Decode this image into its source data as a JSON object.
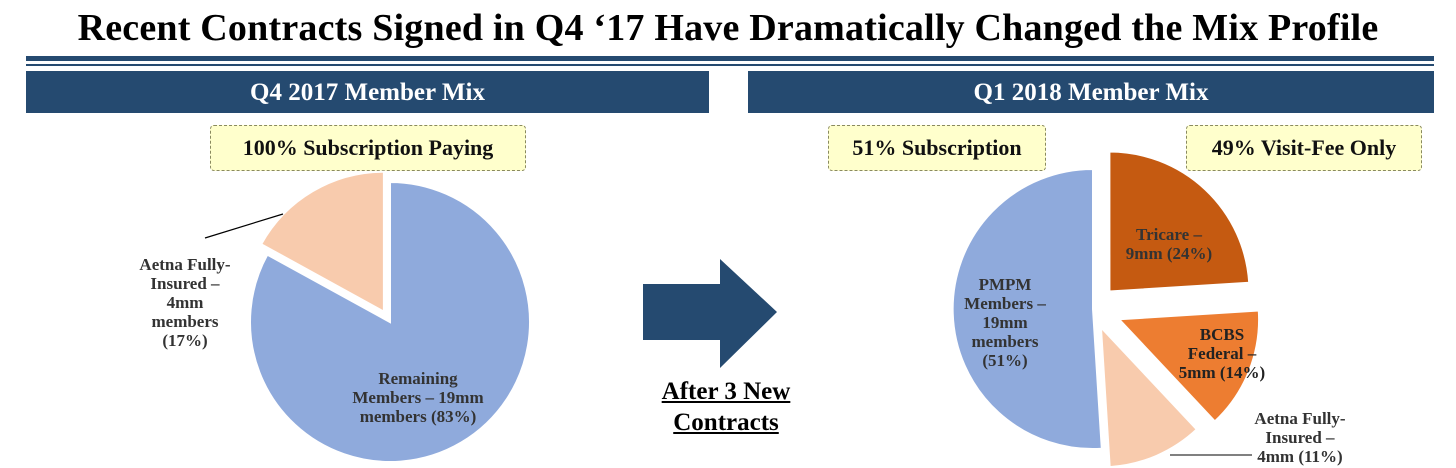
{
  "title": "Recent Contracts Signed in Q4 ‘17 Have Dramatically Changed the Mix Profile",
  "panels": {
    "left": {
      "header": "Q4 2017 Member Mix",
      "callout": "100% Subscription Paying"
    },
    "right": {
      "header": "Q1 2018 Member Mix",
      "callout_left": "51% Subscription",
      "callout_right": "49% Visit-Fee Only"
    }
  },
  "arrow_label_lines": [
    "After 3 New",
    "Contracts"
  ],
  "colors": {
    "header_bg": "#254a70",
    "pmpm": "#8faadc",
    "aetna": "#f8cbad",
    "tricare": "#c55a11",
    "bcbs": "#ed7d31",
    "callout_bg": "#ffffcc",
    "arrow": "#254a70"
  },
  "chart_data": [
    {
      "type": "pie",
      "title": "Q4 2017 Member Mix",
      "slices": [
        {
          "name": "Remaining Members – 19mm members",
          "value": 83,
          "label_lines": [
            "Remaining",
            "Members – 19mm",
            "members (83%)"
          ]
        },
        {
          "name": "Aetna Fully-Insured – 4mm members",
          "value": 17,
          "label_lines": [
            "Aetna Fully-",
            "Insured –",
            "4mm",
            "members",
            "(17%)"
          ]
        }
      ]
    },
    {
      "type": "pie",
      "title": "Q1 2018 Member Mix",
      "slices": [
        {
          "name": "PMPM Members – 19mm members",
          "value": 51,
          "label_lines": [
            "PMPM",
            "Members –",
            "19mm",
            "members",
            "(51%)"
          ]
        },
        {
          "name": "Tricare – 9mm",
          "value": 24,
          "label_lines": [
            "Tricare –",
            "9mm (24%)"
          ]
        },
        {
          "name": "BCBS Federal – 5mm",
          "value": 14,
          "label_lines": [
            "BCBS",
            "Federal –",
            "5mm (14%)"
          ]
        },
        {
          "name": "Aetna Fully-Insured – 4mm",
          "value": 11,
          "label_lines": [
            "Aetna Fully-",
            "Insured –",
            "4mm (11%)"
          ]
        }
      ]
    }
  ]
}
